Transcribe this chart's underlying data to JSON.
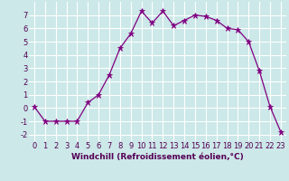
{
  "x": [
    0,
    1,
    2,
    3,
    4,
    5,
    6,
    7,
    8,
    9,
    10,
    11,
    12,
    13,
    14,
    15,
    16,
    17,
    18,
    19,
    20,
    21,
    22,
    23
  ],
  "y": [
    0.1,
    -1.0,
    -1.0,
    -1.0,
    -1.0,
    0.4,
    1.0,
    2.5,
    4.5,
    5.6,
    7.3,
    6.4,
    7.3,
    6.2,
    6.6,
    7.0,
    6.9,
    6.6,
    6.0,
    5.9,
    5.0,
    2.8,
    0.1,
    -1.8
  ],
  "title": "",
  "xlabel": "Windchill (Refroidissement éolien,°C)",
  "ylabel": "",
  "line_color": "#800080",
  "marker_color": "#800080",
  "bg_color": "#cce8e8",
  "grid_color": "#ffffff",
  "xlim": [
    -0.5,
    23.5
  ],
  "ylim": [
    -2.5,
    8.0
  ],
  "yticks": [
    -2,
    -1,
    0,
    1,
    2,
    3,
    4,
    5,
    6,
    7
  ],
  "xticks": [
    0,
    1,
    2,
    3,
    4,
    5,
    6,
    7,
    8,
    9,
    10,
    11,
    12,
    13,
    14,
    15,
    16,
    17,
    18,
    19,
    20,
    21,
    22,
    23
  ],
  "xlabel_fontsize": 6.5,
  "tick_fontsize": 6.0,
  "marker_size": 2.5,
  "line_width": 0.9
}
